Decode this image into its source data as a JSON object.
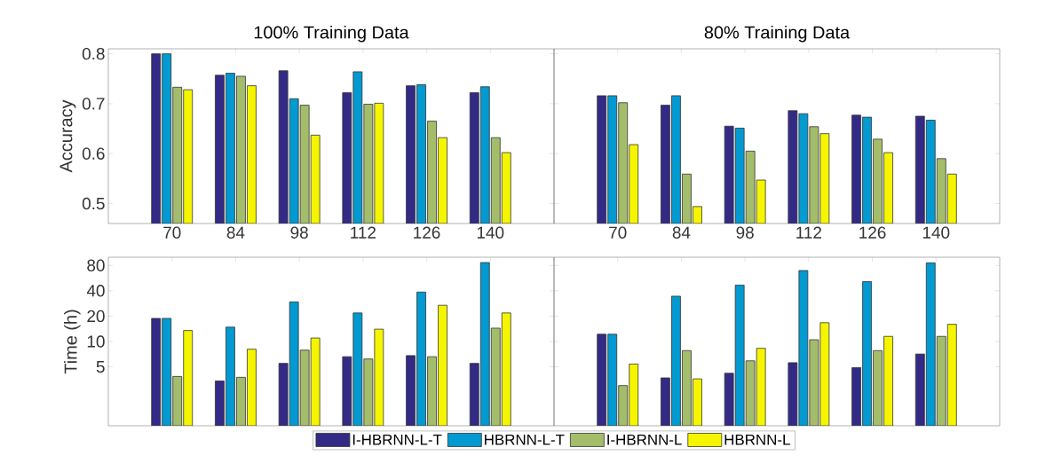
{
  "chart_data": [
    {
      "type": "bar",
      "title": "100% Training Data",
      "ylabel": "Accuracy",
      "categories": [
        "70",
        "84",
        "98",
        "112",
        "126",
        "140"
      ],
      "ylim": [
        0.46,
        0.81
      ],
      "yticks": [
        0.5,
        0.6,
        0.7,
        0.8
      ],
      "series": [
        {
          "color": "#332a86",
          "values": [
            0.8,
            0.757,
            0.766,
            0.722,
            0.736,
            0.722
          ]
        },
        {
          "color": "#0399d1",
          "values": [
            0.8,
            0.761,
            0.71,
            0.764,
            0.738,
            0.734
          ]
        },
        {
          "color": "#a4bd6a",
          "values": [
            0.733,
            0.755,
            0.697,
            0.699,
            0.665,
            0.632
          ]
        },
        {
          "color": "#f5f500",
          "values": [
            0.728,
            0.736,
            0.637,
            0.701,
            0.632,
            0.602
          ]
        }
      ]
    },
    {
      "type": "bar",
      "title": "80% Training Data",
      "categories": [
        "70",
        "84",
        "98",
        "112",
        "126",
        "140"
      ],
      "ylim": [
        0.46,
        0.81
      ],
      "yticks": [
        0.5,
        0.6,
        0.7,
        0.8
      ],
      "tick_labels": "x",
      "series": [
        {
          "color": "#332a86",
          "values": [
            0.716,
            0.697,
            0.655,
            0.686,
            0.677,
            0.675
          ]
        },
        {
          "color": "#0399d1",
          "values": [
            0.716,
            0.716,
            0.651,
            0.68,
            0.673,
            0.667
          ]
        },
        {
          "color": "#a4bd6a",
          "values": [
            0.702,
            0.559,
            0.605,
            0.654,
            0.629,
            0.59
          ]
        },
        {
          "color": "#f5f500",
          "values": [
            0.618,
            0.494,
            0.547,
            0.64,
            0.602,
            0.559
          ]
        }
      ]
    },
    {
      "type": "bar",
      "ylabel": "Time (h)",
      "categories": [
        "70",
        "84",
        "98",
        "112",
        "126",
        "140"
      ],
      "log": true,
      "ylim": [
        1,
        100
      ],
      "yticks": [
        5,
        10,
        20,
        40,
        80
      ],
      "tick_labels": "y",
      "legend": "bottom",
      "series": [
        {
          "name": "I-HBRNN-L-T",
          "color": "#332a86",
          "values": [
            18.8,
            3.4,
            5.5,
            6.6,
            6.8,
            5.5
          ]
        },
        {
          "name": "HBRNN-L-T",
          "color": "#0399d1",
          "values": [
            18.8,
            14.8,
            29.5,
            21.8,
            38.6,
            86.5
          ]
        },
        {
          "name": "I-HBRNN-L",
          "color": "#a4bd6a",
          "values": [
            3.85,
            3.76,
            7.9,
            6.2,
            6.6,
            14.4
          ]
        },
        {
          "name": "HBRNN-L",
          "color": "#f5f500",
          "values": [
            13.5,
            8.1,
            11.0,
            14.0,
            26.9,
            21.8
          ]
        }
      ]
    },
    {
      "type": "bar",
      "categories": [
        "70",
        "84",
        "98",
        "112",
        "126",
        "140"
      ],
      "log": true,
      "ylim": [
        1,
        100
      ],
      "yticks": [
        5,
        10,
        20,
        40,
        80
      ],
      "tick_labels": false,
      "series": [
        {
          "color": "#332a86",
          "values": [
            12.2,
            3.7,
            4.2,
            5.6,
            4.9,
            7.1
          ]
        },
        {
          "color": "#0399d1",
          "values": [
            12.2,
            34.5,
            46.7,
            69.5,
            51.3,
            85.8
          ]
        },
        {
          "color": "#a4bd6a",
          "values": [
            3.0,
            7.8,
            5.9,
            10.5,
            7.8,
            11.5
          ]
        },
        {
          "color": "#f5f500",
          "values": [
            5.4,
            3.6,
            8.3,
            16.7,
            11.5,
            16.0
          ]
        }
      ]
    }
  ]
}
